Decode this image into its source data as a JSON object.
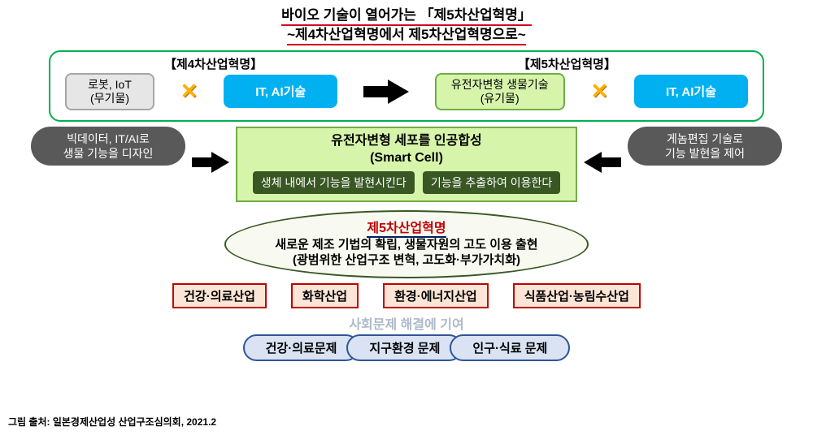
{
  "title": {
    "line1": "바이오 기술이 열어가는 「제5차산업혁명」",
    "line2": "~제4차산업혁명에서 제5차산업혁명으로~"
  },
  "colors": {
    "green_border": "#00b050",
    "cyan": "#00b0f0",
    "lime_bg": "#d7f4ab",
    "lime_border": "#70ad47",
    "dark_oval": "#595959",
    "dark_green": "#385723",
    "red": "#c00000",
    "peach_bg": "#fbe5d6",
    "blue_bg": "#dae3f3",
    "blue_border": "#2f5597",
    "gray_text": "#adb9ca",
    "orange_x": "#ffb000"
  },
  "rev": {
    "label_left": "【제4차산업혁명】",
    "label_right": "【제5차산업혁명】",
    "gray_box": "로봇, IoT\n(무기물)",
    "cyan1": "IT, AI기술",
    "lime_box": "유전자변형 생물기술\n(유기물)",
    "cyan2": "IT, AI기술"
  },
  "mid": {
    "left_oval": "빅데이터, IT/AI로\n생물 기능을 디자인",
    "right_oval": "게놈편집 기술로\n기능 발현을 제어",
    "smart_head1": "유전자변형 세포를 인공합성",
    "smart_head2": "(Smart Cell)",
    "dark1": "생체 내에서 기능을 발현시킨다",
    "dark2": "기능을 추출하여 이용한다"
  },
  "ellipse": {
    "red": "제5차산업혁명",
    "line1": "새로운 제조 기법의 확립, 생물자원의 고도 이용 출현",
    "line2": "(광범위한 산업구조 변혁, 고도화·부가가치화)"
  },
  "industries": [
    "건강·의료산업",
    "화학산업",
    "환경·에너지산업",
    "식품산업·농림수산업"
  ],
  "social": {
    "title": "사회문제 해결에 기여",
    "items": [
      "건강·의료문제",
      "지구환경 문제",
      "인구·식료 문제"
    ]
  },
  "source": "그림 출처: 일본경제산업성 산업구조심의회, 2021.2"
}
